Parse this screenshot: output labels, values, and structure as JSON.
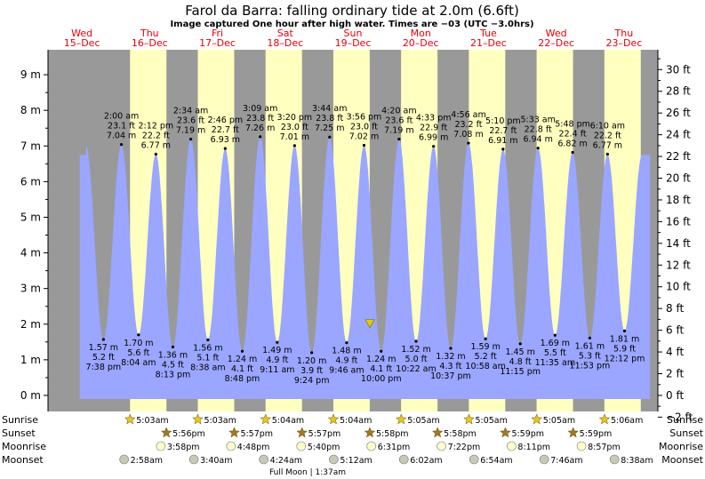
{
  "title": "Farol da Barra: falling  ordinary tide at 2.0m (6.6ft)",
  "subtitle": "Image captured One hour after high water. Times are −03 (UTC −3.0hrs)",
  "days": [
    {
      "name": "Wed",
      "date": "15–Dec"
    },
    {
      "name": "Thu",
      "date": "16–Dec"
    },
    {
      "name": "Fri",
      "date": "17–Dec"
    },
    {
      "name": "Sat",
      "date": "18–Dec"
    },
    {
      "name": "Sun",
      "date": "19–Dec"
    },
    {
      "name": "Mon",
      "date": "20–Dec"
    },
    {
      "name": "Tue",
      "date": "21–Dec"
    },
    {
      "name": "Wed",
      "date": "22–Dec"
    },
    {
      "name": "Thu",
      "date": "23–Dec"
    }
  ],
  "colors": {
    "night": "#999999",
    "day": "#ffffc0",
    "tide": "#9aa6ff",
    "current": "#e6c800",
    "sun": "#e6c820",
    "sunset": "#a07828",
    "moon": "#ffffc8",
    "moonset": "#c8c8b4"
  },
  "row_labels": {
    "sunrise": "Sunrise",
    "sunset": "Sunset",
    "moonrise": "Moonrise",
    "moonset": "Moonset"
  },
  "events": {
    "sunrise": [
      "5:03am",
      "5:03am",
      "5:04am",
      "5:04am",
      "5:05am",
      "5:05am",
      "5:05am",
      "5:06am"
    ],
    "sunset": [
      "5:56pm",
      "5:57pm",
      "5:57pm",
      "5:58pm",
      "5:58pm",
      "5:59pm",
      "5:59pm"
    ],
    "moonrise": [
      "3:58pm",
      "4:48pm",
      "5:40pm",
      "6:31pm",
      "7:22pm",
      "8:11pm",
      "8:57pm"
    ],
    "moonset": [
      "2:58am",
      "3:40am",
      "4:24am",
      "5:12am",
      "6:02am",
      "6:54am",
      "7:46am",
      "8:38am"
    ]
  },
  "moon_note": "Full Moon | 1:37am",
  "chart_data": {
    "type": "area",
    "title": "Farol da Barra: falling  ordinary tide at 2.0m (6.6ft)",
    "y_left": {
      "unit": "m",
      "ticks": [
        "0 m",
        "1 m",
        "2 m",
        "3 m",
        "4 m",
        "5 m",
        "6 m",
        "7 m",
        "8 m",
        "9 m"
      ],
      "range": [
        -0.45,
        9.7
      ]
    },
    "y_right": {
      "unit": "ft",
      "ticks": [
        "−2 ft",
        "0 ft",
        "2 ft",
        "4 ft",
        "6 ft",
        "8 ft",
        "10 ft",
        "12 ft",
        "14 ft",
        "16 ft",
        "18 ft",
        "20 ft",
        "22 ft",
        "24 ft",
        "26 ft",
        "28 ft",
        "30 ft"
      ]
    },
    "x": {
      "start": "2021-12-15 00:00",
      "end": "2021-12-24 00:00",
      "unit": "day"
    },
    "current": {
      "time": "2021-12-19 18:00",
      "height_m": 2.0
    },
    "high_tides": [
      {
        "time": "2:00 am",
        "ft": "23.1 ft",
        "m": "7.04 m",
        "t": 1.0833,
        "h": 7.04
      },
      {
        "time": "2:12 pm",
        "ft": "22.2 ft",
        "m": "6.77 m",
        "t": 1.5917,
        "h": 6.77
      },
      {
        "time": "2:34 am",
        "ft": "23.6 ft",
        "m": "7.19 m",
        "t": 2.1069,
        "h": 7.19
      },
      {
        "time": "2:46 pm",
        "ft": "22.7 ft",
        "m": "6.93 m",
        "t": 2.6153,
        "h": 6.93
      },
      {
        "time": "3:09 am",
        "ft": "23.8 ft",
        "m": "7.26 m",
        "t": 3.1313,
        "h": 7.26
      },
      {
        "time": "3:20 pm",
        "ft": "23.0 ft",
        "m": "7.01 m",
        "t": 3.6389,
        "h": 7.01
      },
      {
        "time": "3:44 am",
        "ft": "23.8 ft",
        "m": "7.25 m",
        "t": 4.1556,
        "h": 7.25
      },
      {
        "time": "3:56 pm",
        "ft": "23.0 ft",
        "m": "7.02 m",
        "t": 4.6639,
        "h": 7.02
      },
      {
        "time": "4:20 am",
        "ft": "23.6 ft",
        "m": "7.19 m",
        "t": 5.1806,
        "h": 7.19
      },
      {
        "time": "4:33 pm",
        "ft": "22.9 ft",
        "m": "6.99 m",
        "t": 5.6896,
        "h": 6.99
      },
      {
        "time": "4:56 am",
        "ft": "23.2 ft",
        "m": "7.08 m",
        "t": 6.2056,
        "h": 7.08
      },
      {
        "time": "5:10 pm",
        "ft": "22.7 ft",
        "m": "6.91 m",
        "t": 6.7153,
        "h": 6.91
      },
      {
        "time": "5:33 am",
        "ft": "22.8 ft",
        "m": "6.94 m",
        "t": 7.2313,
        "h": 6.94
      },
      {
        "time": "5:48 pm",
        "ft": "22.4 ft",
        "m": "6.82 m",
        "t": 7.7417,
        "h": 6.82
      },
      {
        "time": "6:10 am",
        "ft": "22.2 ft",
        "m": "6.77 m",
        "t": 8.2569,
        "h": 6.77
      }
    ],
    "low_tides": [
      {
        "time": "7:38 pm",
        "ft": "5.2 ft",
        "m": "1.57 m",
        "t": 0.8181,
        "h": 1.57
      },
      {
        "time": "8:04 am",
        "ft": "5.6 ft",
        "m": "1.70 m",
        "t": 1.3361,
        "h": 1.7
      },
      {
        "time": "8:13 pm",
        "ft": "4.5 ft",
        "m": "1.36 m",
        "t": 1.8424,
        "h": 1.36
      },
      {
        "time": "8:38 am",
        "ft": "5.1 ft",
        "m": "1.56 m",
        "t": 2.3597,
        "h": 1.56
      },
      {
        "time": "8:48 pm",
        "ft": "4.1 ft",
        "m": "1.24 m",
        "t": 2.8667,
        "h": 1.24
      },
      {
        "time": "9:11 am",
        "ft": "4.9 ft",
        "m": "1.49 m",
        "t": 3.3826,
        "h": 1.49
      },
      {
        "time": "9:24 pm",
        "ft": "3.9 ft",
        "m": "1.20 m",
        "t": 3.8917,
        "h": 1.2
      },
      {
        "time": "9:46 am",
        "ft": "4.9 ft",
        "m": "1.48 m",
        "t": 4.4069,
        "h": 1.48
      },
      {
        "time": "10:00 pm",
        "ft": "4.1 ft",
        "m": "1.24 m",
        "t": 4.9167,
        "h": 1.24
      },
      {
        "time": "10:22 am",
        "ft": "5.0 ft",
        "m": "1.52 m",
        "t": 5.4319,
        "h": 1.52
      },
      {
        "time": "10:37 pm",
        "ft": "4.3 ft",
        "m": "1.32 m",
        "t": 5.9424,
        "h": 1.32
      },
      {
        "time": "10:58 am",
        "ft": "5.2 ft",
        "m": "1.59 m",
        "t": 6.4569,
        "h": 1.59
      },
      {
        "time": "11:15 pm",
        "ft": "4.8 ft",
        "m": "1.45 m",
        "t": 6.9688,
        "h": 1.45
      },
      {
        "time": "11:35 am",
        "ft": "5.5 ft",
        "m": "1.69 m",
        "t": 7.4826,
        "h": 1.69
      },
      {
        "time": "11:53 pm",
        "ft": "5.3 ft",
        "m": "1.61 m",
        "t": 7.9951,
        "h": 1.61
      },
      {
        "time": "12:12 pm",
        "ft": "5.9 ft",
        "m": "1.81 m",
        "t": 8.5083,
        "h": 1.81
      }
    ]
  }
}
